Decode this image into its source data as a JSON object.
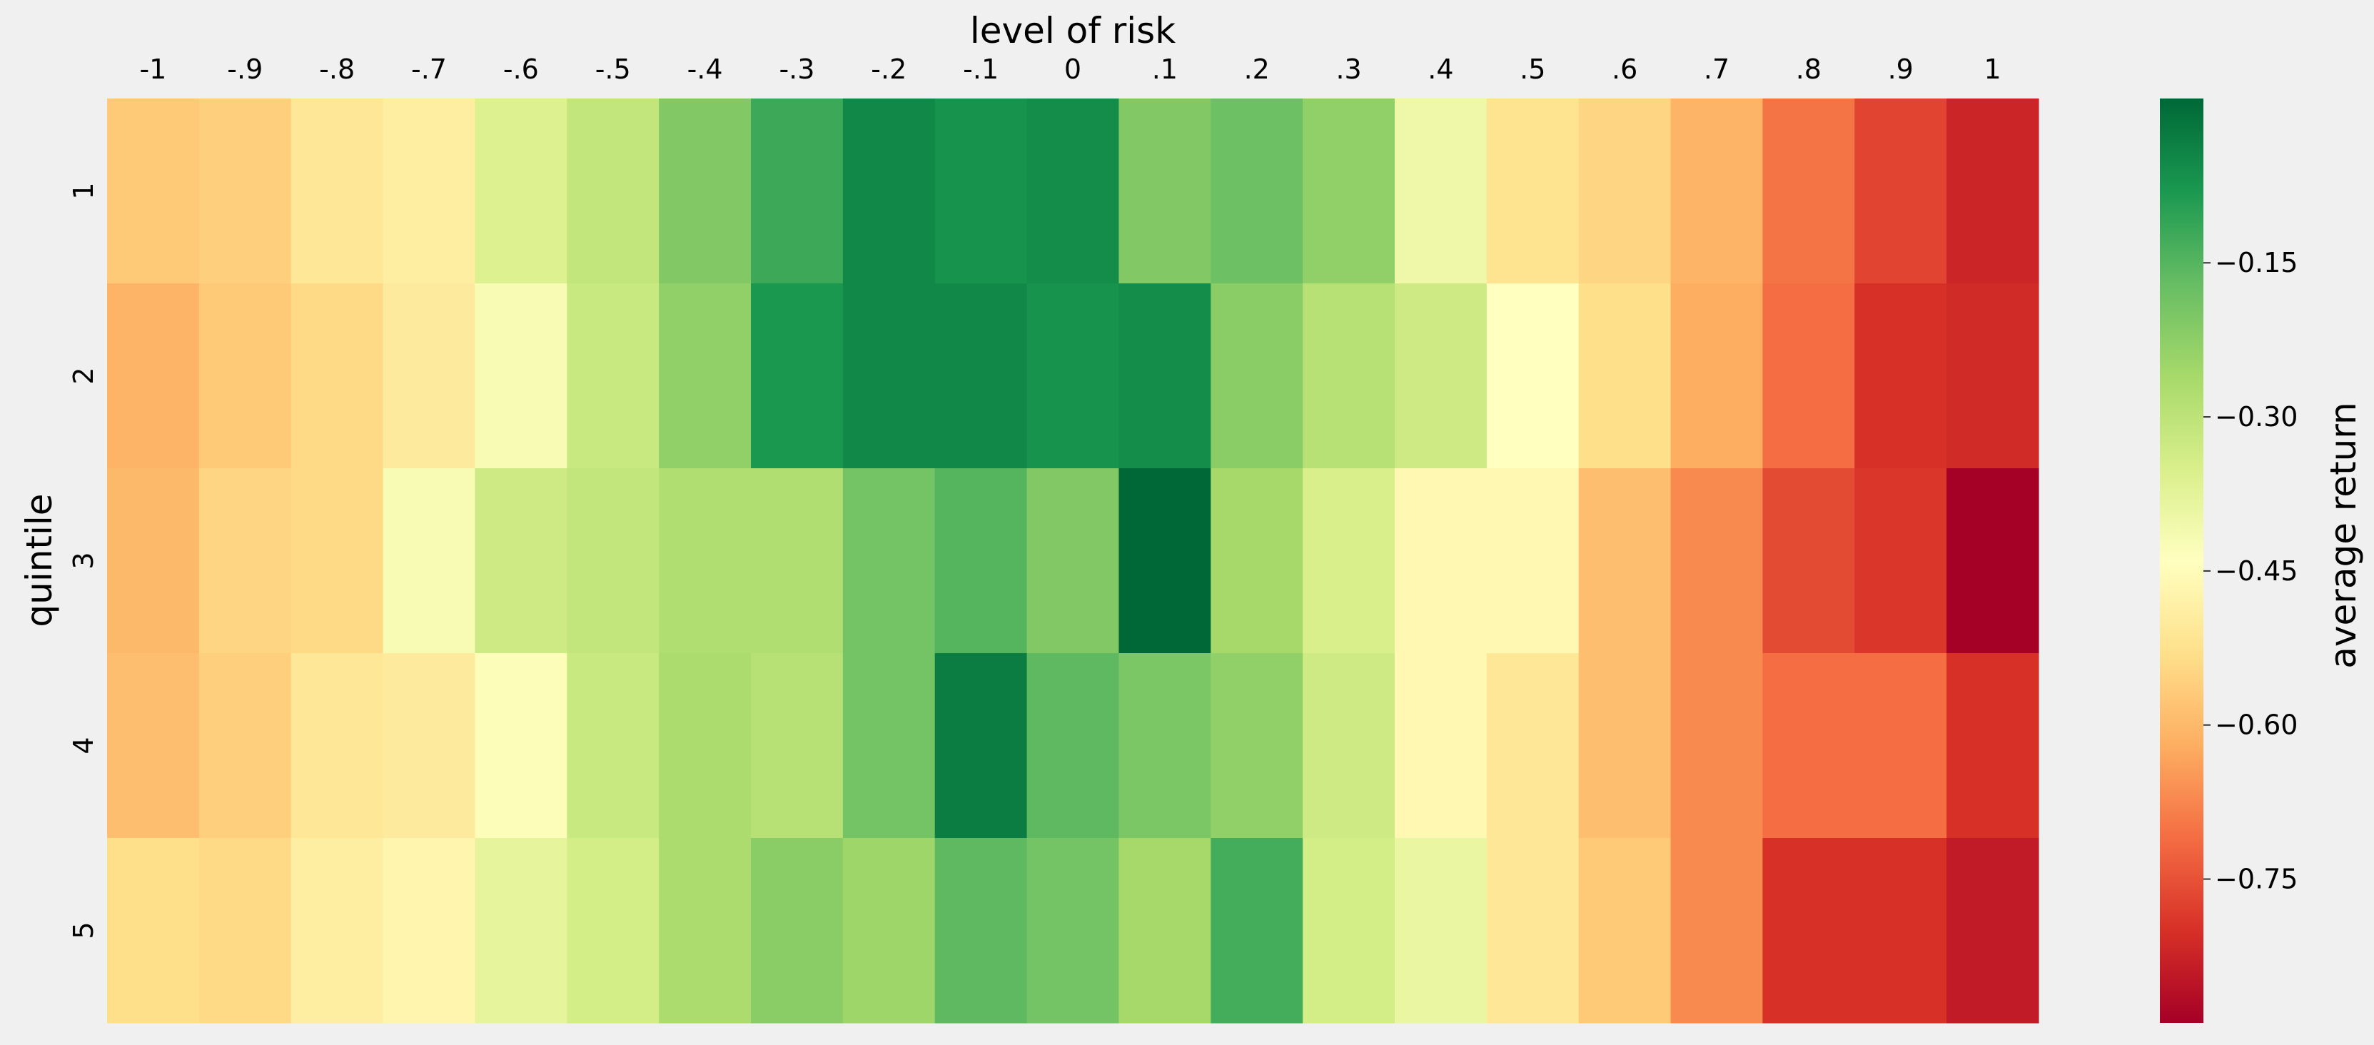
{
  "chart_data": {
    "type": "heatmap",
    "title": "level of risk",
    "xlabel": "level of risk",
    "ylabel": "quintile",
    "x_tick_position": "top",
    "columns": [
      "-1",
      "-.9",
      "-.8",
      "-.7",
      "-.6",
      "-.5",
      "-.4",
      "-.3",
      "-.2",
      "-.1",
      "0",
      ".1",
      ".2",
      ".3",
      ".4",
      ".5",
      ".6",
      ".7",
      ".8",
      ".9",
      "1"
    ],
    "rows": [
      "1",
      "2",
      "3",
      "4",
      "5"
    ],
    "values": [
      [
        -0.57,
        -0.56,
        -0.51,
        -0.49,
        -0.36,
        -0.31,
        -0.21,
        -0.12,
        -0.05,
        -0.07,
        -0.06,
        -0.21,
        -0.18,
        -0.23,
        -0.4,
        -0.52,
        -0.55,
        -0.61,
        -0.7,
        -0.77,
        -0.82
      ],
      [
        -0.61,
        -0.57,
        -0.54,
        -0.5,
        -0.42,
        -0.32,
        -0.23,
        -0.08,
        -0.05,
        -0.05,
        -0.07,
        -0.06,
        -0.22,
        -0.29,
        -0.33,
        -0.44,
        -0.53,
        -0.62,
        -0.71,
        -0.8,
        -0.81
      ],
      [
        -0.6,
        -0.55,
        -0.54,
        -0.42,
        -0.33,
        -0.31,
        -0.28,
        -0.28,
        -0.19,
        -0.15,
        -0.21,
        0.01,
        -0.26,
        -0.35,
        -0.46,
        -0.46,
        -0.59,
        -0.67,
        -0.76,
        -0.79,
        -0.89
      ],
      [
        -0.59,
        -0.56,
        -0.51,
        -0.5,
        -0.43,
        -0.32,
        -0.27,
        -0.29,
        -0.19,
        -0.03,
        -0.16,
        -0.2,
        -0.23,
        -0.33,
        -0.46,
        -0.51,
        -0.59,
        -0.67,
        -0.71,
        -0.71,
        -0.8
      ],
      [
        -0.53,
        -0.54,
        -0.49,
        -0.47,
        -0.38,
        -0.34,
        -0.27,
        -0.22,
        -0.25,
        -0.16,
        -0.19,
        -0.26,
        -0.13,
        -0.34,
        -0.39,
        -0.51,
        -0.57,
        -0.67,
        -0.8,
        -0.8,
        -0.84
      ]
    ],
    "colorbar": {
      "label": "average return",
      "ticks": [
        "−0.15",
        "−0.30",
        "−0.45",
        "−0.60",
        "−0.75"
      ],
      "tick_values": [
        -0.15,
        -0.3,
        -0.45,
        -0.6,
        -0.75
      ],
      "min": -0.89,
      "max": 0.01,
      "colormap": "RdYlGn"
    },
    "grid": false,
    "legend": "colorbar-right"
  }
}
